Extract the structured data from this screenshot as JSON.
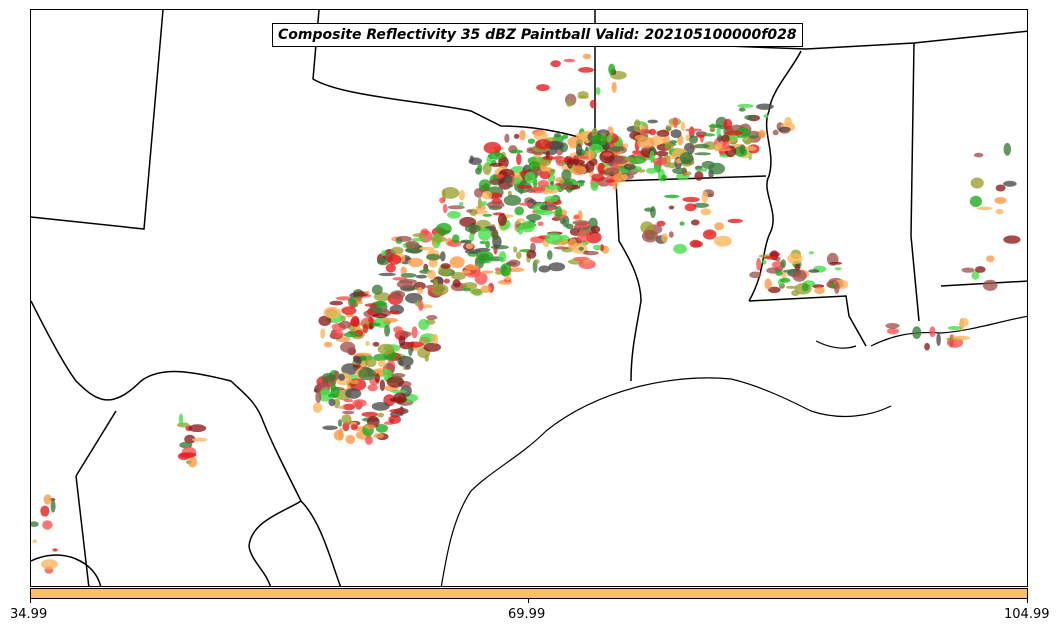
{
  "title": "Composite Reflectivity 35 dBZ Paintball Valid: 202105100000f028",
  "colorbar": {
    "color": "#fdbf6f",
    "ticks": [
      "34.99",
      "69.99",
      "104.99"
    ],
    "range": [
      34.99,
      104.99
    ]
  },
  "colors": {
    "orange": "#fd9a44",
    "light_orange": "#fdb55a",
    "red": "#e31a1c",
    "light_red": "#fb4d4d",
    "green": "#1aaa1a",
    "light_green": "#44dd44",
    "dark_green": "#3a7a3a",
    "olive": "#9aa030",
    "dark_red": "#8b1a1a",
    "brown": "#a0524e",
    "dark_gray": "#4a4a4a",
    "boundary": "#000000"
  }
}
